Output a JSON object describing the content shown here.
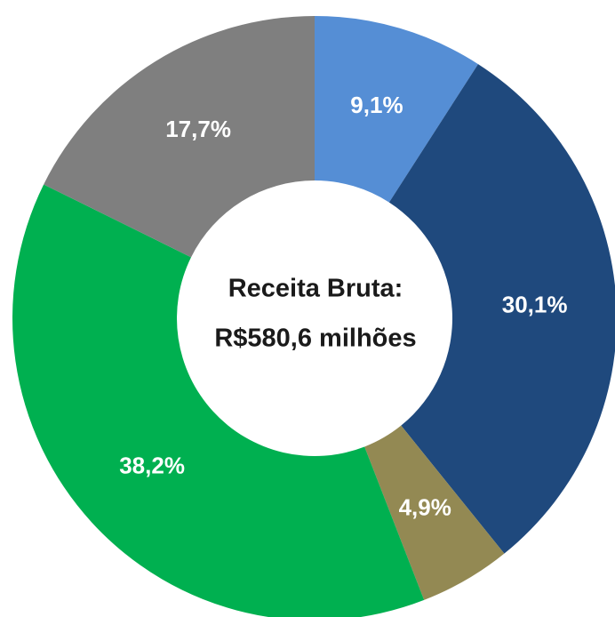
{
  "chart_data": {
    "type": "donut",
    "center_text": [
      "Receita Bruta:",
      "R$580,6 milhões"
    ],
    "values": [
      9.1,
      30.1,
      4.9,
      38.2,
      17.7
    ],
    "value_labels": [
      "9,1%",
      "30,1%",
      "4,9%",
      "38,2%",
      "17,7%"
    ],
    "colors": [
      "#558ed5",
      "#1f497d",
      "#938953",
      "#00b050",
      "#7f7f7f"
    ]
  }
}
